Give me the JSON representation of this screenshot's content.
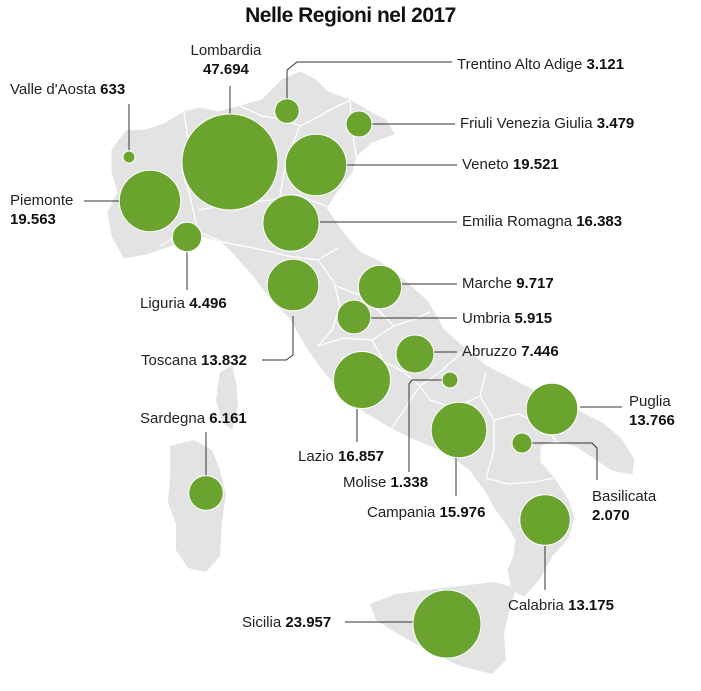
{
  "title": "Nelle Regioni nel 2017",
  "colors": {
    "bubble": "#6aa32d",
    "bubble_stroke": "#ffffff",
    "map_fill": "#e3e3e3",
    "map_border": "#ffffff",
    "leader": "#333333"
  },
  "regions": [
    {
      "key": "lombardia",
      "name": "Lombardia",
      "value": "47.694",
      "amount": 47694
    },
    {
      "key": "valle",
      "name": "Valle d'Aosta",
      "value": "633",
      "amount": 633
    },
    {
      "key": "trentino",
      "name": "Trentino Alto Adige",
      "value": "3.121",
      "amount": 3121
    },
    {
      "key": "friuli",
      "name": "Friuli Venezia Giulia",
      "value": "3.479",
      "amount": 3479
    },
    {
      "key": "veneto",
      "name": "Veneto",
      "value": "19.521",
      "amount": 19521
    },
    {
      "key": "piemonte",
      "name": "Piemonte",
      "value": "19.563",
      "amount": 19563
    },
    {
      "key": "emilia",
      "name": "Emilia Romagna",
      "value": "16.383",
      "amount": 16383
    },
    {
      "key": "liguria",
      "name": "Liguria",
      "value": "4.496",
      "amount": 4496
    },
    {
      "key": "marche",
      "name": "Marche",
      "value": "9.717",
      "amount": 9717
    },
    {
      "key": "umbria",
      "name": "Umbria",
      "value": "5.915",
      "amount": 5915
    },
    {
      "key": "toscana",
      "name": "Toscana",
      "value": "13.832",
      "amount": 13832
    },
    {
      "key": "abruzzo",
      "name": "Abruzzo",
      "value": "7.446",
      "amount": 7446
    },
    {
      "key": "sardegna",
      "name": "Sardegna",
      "value": "6.161",
      "amount": 6161
    },
    {
      "key": "puglia",
      "name": "Puglia",
      "value": "13.766",
      "amount": 13766
    },
    {
      "key": "lazio",
      "name": "Lazio",
      "value": "16.857",
      "amount": 16857
    },
    {
      "key": "molise",
      "name": "Molise",
      "value": "1.338",
      "amount": 1338
    },
    {
      "key": "basilicata",
      "name": "Basilicata",
      "value": "2.070",
      "amount": 2070
    },
    {
      "key": "campania",
      "name": "Campania",
      "value": "15.976",
      "amount": 15976
    },
    {
      "key": "calabria",
      "name": "Calabria",
      "value": "13.175",
      "amount": 13175
    },
    {
      "key": "sicilia",
      "name": "Sicilia",
      "value": "23.957",
      "amount": 23957
    }
  ]
}
